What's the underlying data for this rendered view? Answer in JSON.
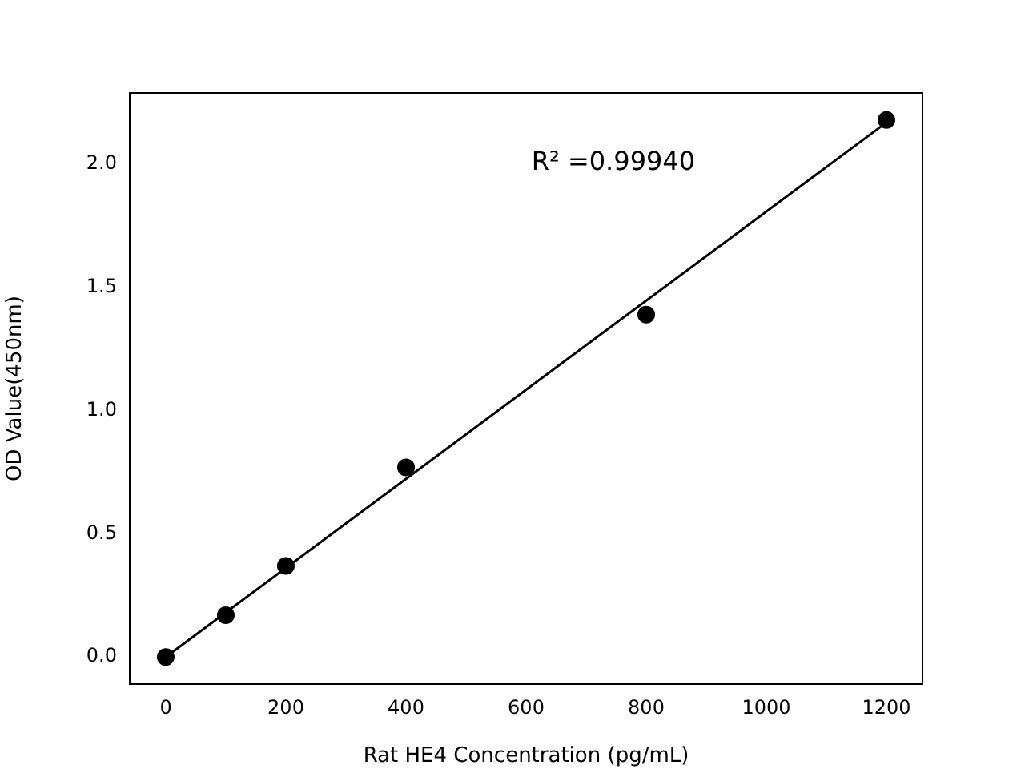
{
  "chart_data": {
    "type": "scatter",
    "xlabel": "Rat HE4 Concentration (pg/mL)",
    "ylabel": "OD Value(450nm)",
    "annotations": [
      "R² =0.99940"
    ],
    "x": [
      0,
      100,
      200,
      400,
      800,
      1200
    ],
    "series": [
      {
        "color": "#000000",
        "marker": "circle",
        "values": [
          0.0,
          0.17,
          0.37,
          0.77,
          1.39,
          2.18
        ]
      },
      {
        "type": "line",
        "color": "#000000",
        "marker": "none",
        "line_style": "solid",
        "x": [
          0,
          1200
        ],
        "values": [
          0.0,
          2.17
        ]
      }
    ],
    "xlim": [
      -60,
      1260
    ],
    "xticks": [
      0,
      200,
      400,
      600,
      800,
      1000,
      1200
    ],
    "ylim": [
      -0.11,
      2.29
    ],
    "yticks": [
      {
        "value": 0,
        "label": "0.0"
      },
      {
        "value": 0.5,
        "label": "0.5"
      },
      {
        "value": 1,
        "label": "1.0"
      },
      {
        "value": 1.5,
        "label": "1.5"
      },
      {
        "value": 2,
        "label": "2.0"
      }
    ],
    "grid": false,
    "legend": false
  }
}
